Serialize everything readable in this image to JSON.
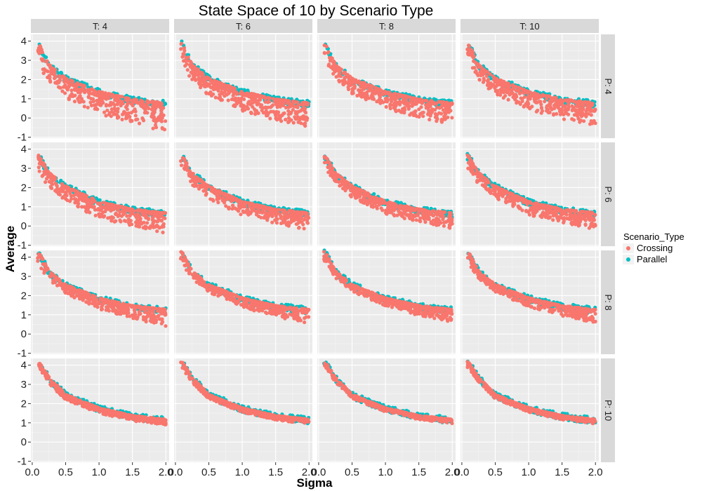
{
  "chart_data": {
    "type": "scatter",
    "title": "State Space of 10 by Scenario Type",
    "xlabel": "Sigma",
    "ylabel": "Average",
    "xlim": [
      -0.02,
      2.05
    ],
    "ylim": [
      -1.05,
      4.35
    ],
    "x_ticks": [
      0.0,
      0.5,
      1.0,
      1.5,
      2.0
    ],
    "x_tick_labels": [
      "0.0",
      "0.5",
      "1.0",
      "1.5",
      "2.0"
    ],
    "y_ticks": [
      -1,
      0,
      1,
      2,
      3,
      4
    ],
    "y_tick_labels": [
      "-1",
      "0",
      "1",
      "2",
      "3",
      "4"
    ],
    "grid": true,
    "facet_cols": [
      "T: 4",
      "T: 6",
      "T: 8",
      "T: 10"
    ],
    "facet_rows": [
      "P: 4",
      "P: 6",
      "P: 8",
      "P: 10"
    ],
    "legend": {
      "title": "Scenario_Type",
      "position": "right",
      "entries": [
        {
          "name": "Crossing",
          "color": "#F8766D"
        },
        {
          "name": "Parallel",
          "color": "#00BFC4"
        }
      ]
    },
    "series": [
      {
        "name": "Crossing",
        "color": "#F8766D"
      },
      {
        "name": "Parallel",
        "color": "#00BFC4"
      }
    ],
    "curve_reference": {
      "sigma": [
        0.1,
        0.25,
        0.5,
        1.0,
        1.5,
        2.0
      ],
      "rows": [
        {
          "row": "P: 4",
          "parallel_upper": [
            4.0,
            2.9,
            2.2,
            1.5,
            1.1,
            0.9
          ],
          "crossing_lower": [
            2.5,
            1.8,
            1.0,
            0.2,
            -0.3,
            -0.7
          ]
        },
        {
          "row": "P: 6",
          "parallel_upper": [
            3.8,
            2.9,
            2.2,
            1.4,
            1.0,
            0.8
          ],
          "crossing_lower": [
            2.8,
            2.0,
            1.3,
            0.4,
            0.0,
            -0.4
          ]
        },
        {
          "row": "P: 8",
          "parallel_upper": [
            4.4,
            3.4,
            2.7,
            2.0,
            1.6,
            1.4
          ],
          "crossing_lower": [
            3.5,
            2.8,
            2.1,
            1.3,
            0.8,
            0.4
          ]
        },
        {
          "row": "P: 10",
          "parallel_upper": [
            4.3,
            3.5,
            2.6,
            1.9,
            1.5,
            1.3
          ],
          "crossing_lower": [
            3.8,
            3.0,
            2.2,
            1.5,
            1.1,
            0.9
          ]
        }
      ]
    }
  }
}
